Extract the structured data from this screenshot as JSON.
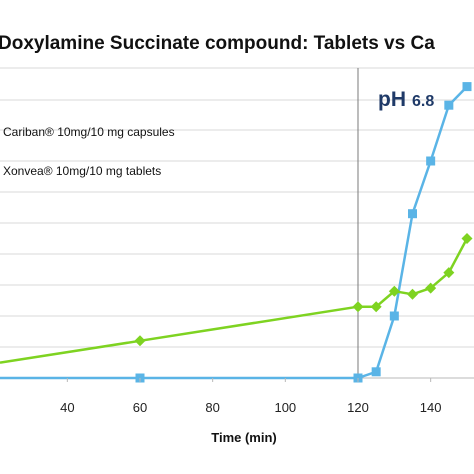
{
  "chart_data": {
    "type": "line",
    "title": "Doxylamine Succinate compound: Tablets vs Ca",
    "xlabel": "Time (min)",
    "ylabel": "",
    "x_ticks": [
      "40",
      "60",
      "80",
      "100",
      "120",
      "140"
    ],
    "xlim": [
      28,
      155
    ],
    "ylim": [
      0,
      100
    ],
    "grid": true,
    "divider_x": 120,
    "annotation": {
      "main": "pH",
      "value": "6.8"
    },
    "legend": [
      {
        "name": "Cariban® 10mg/10 mg capsules",
        "color": "#5ab4e6",
        "marker": "square"
      },
      {
        "name": "Xonvea® 10mg/10 mg tablets",
        "color": "#7ed321",
        "marker": "diamond"
      }
    ],
    "series": [
      {
        "name": "Cariban® 10mg/10 mg capsules",
        "color": "#5ab4e6",
        "marker": "square",
        "x": [
          60,
          120,
          125,
          130,
          135,
          140,
          145,
          150
        ],
        "y": [
          0,
          0,
          2,
          20,
          53,
          70,
          88,
          94
        ]
      },
      {
        "name": "Xonvea® 10mg/10 mg tablets",
        "color": "#7ed321",
        "marker": "diamond",
        "x": [
          60,
          120,
          125,
          130,
          135,
          140,
          145,
          150
        ],
        "y": [
          12,
          23,
          23,
          28,
          27,
          29,
          34,
          45
        ]
      }
    ]
  }
}
